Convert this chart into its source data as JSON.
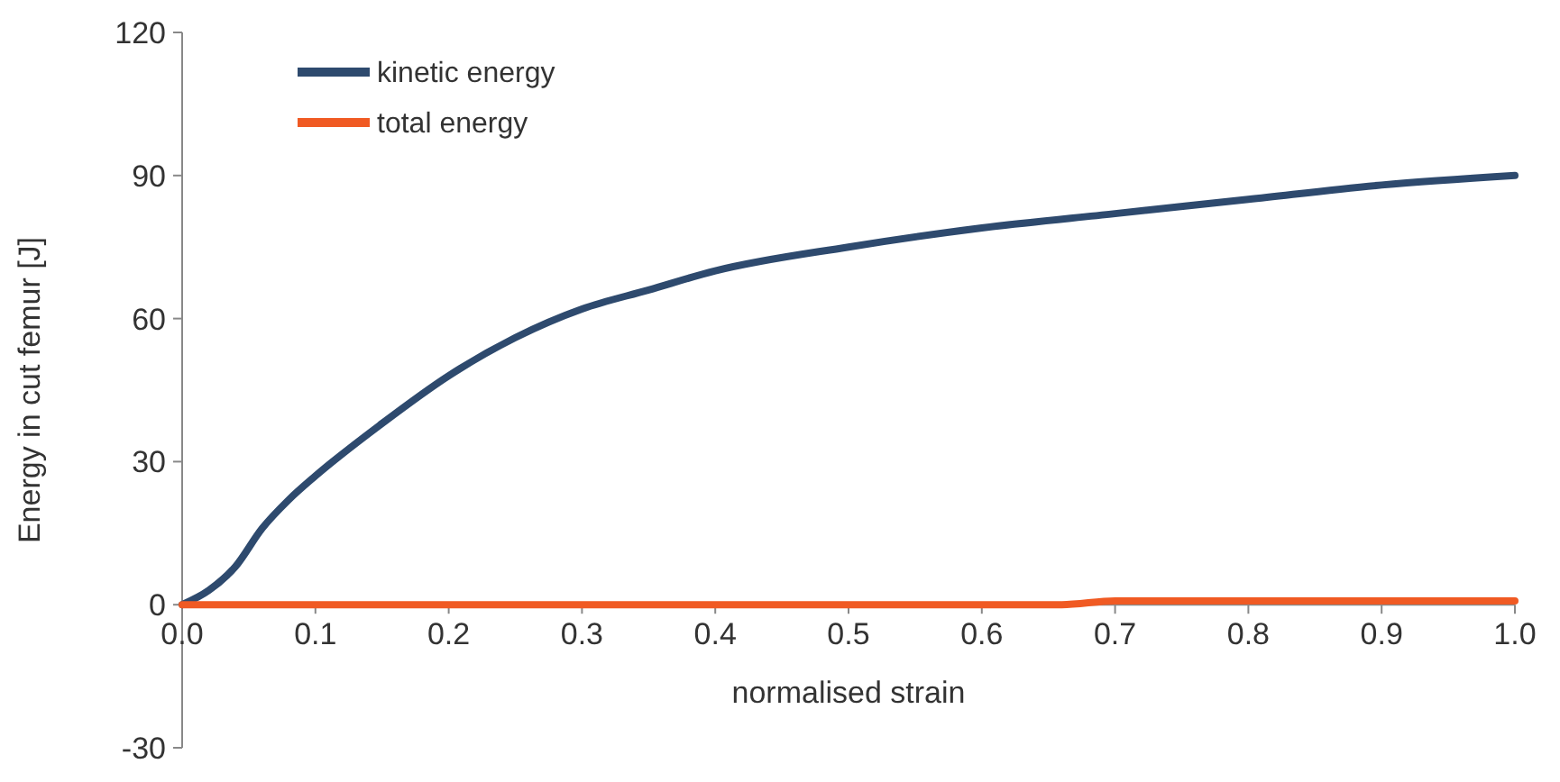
{
  "chart_data": {
    "type": "line",
    "xlabel": "normalised strain",
    "ylabel": "Energy in cut femur [J]",
    "xlim": [
      0,
      1
    ],
    "xticks": [
      {
        "value": 0,
        "label": "0.0"
      },
      0.1,
      0.2,
      0.3,
      0.4,
      0.5,
      0.6,
      0.7,
      0.8,
      0.9,
      {
        "value": 1,
        "label": "1.0"
      }
    ],
    "ylim": [
      -30,
      120
    ],
    "yticks": [
      -30,
      0,
      30,
      60,
      90,
      120
    ],
    "grid": false,
    "legend": "top left",
    "line_style": "solid",
    "x": [
      0,
      0.02,
      0.04,
      0.06,
      0.08,
      0.1,
      0.15,
      0.2,
      0.25,
      0.3,
      0.35,
      0.4,
      0.5,
      0.6,
      0.7,
      0.8,
      0.9,
      1.0
    ],
    "series": [
      {
        "name": "kinetic energy",
        "color": "#2e4a6e",
        "values": [
          0,
          3,
          8,
          16,
          22,
          27,
          38,
          48,
          56,
          62,
          66,
          70,
          75,
          79,
          82,
          85,
          88,
          90
        ]
      },
      {
        "name": "total energy",
        "color": "#f05a23",
        "x": [
          0,
          0.66,
          0.7,
          0.8,
          1.0
        ],
        "values": [
          0,
          0,
          0.8,
          0.8,
          0.8
        ]
      }
    ]
  }
}
